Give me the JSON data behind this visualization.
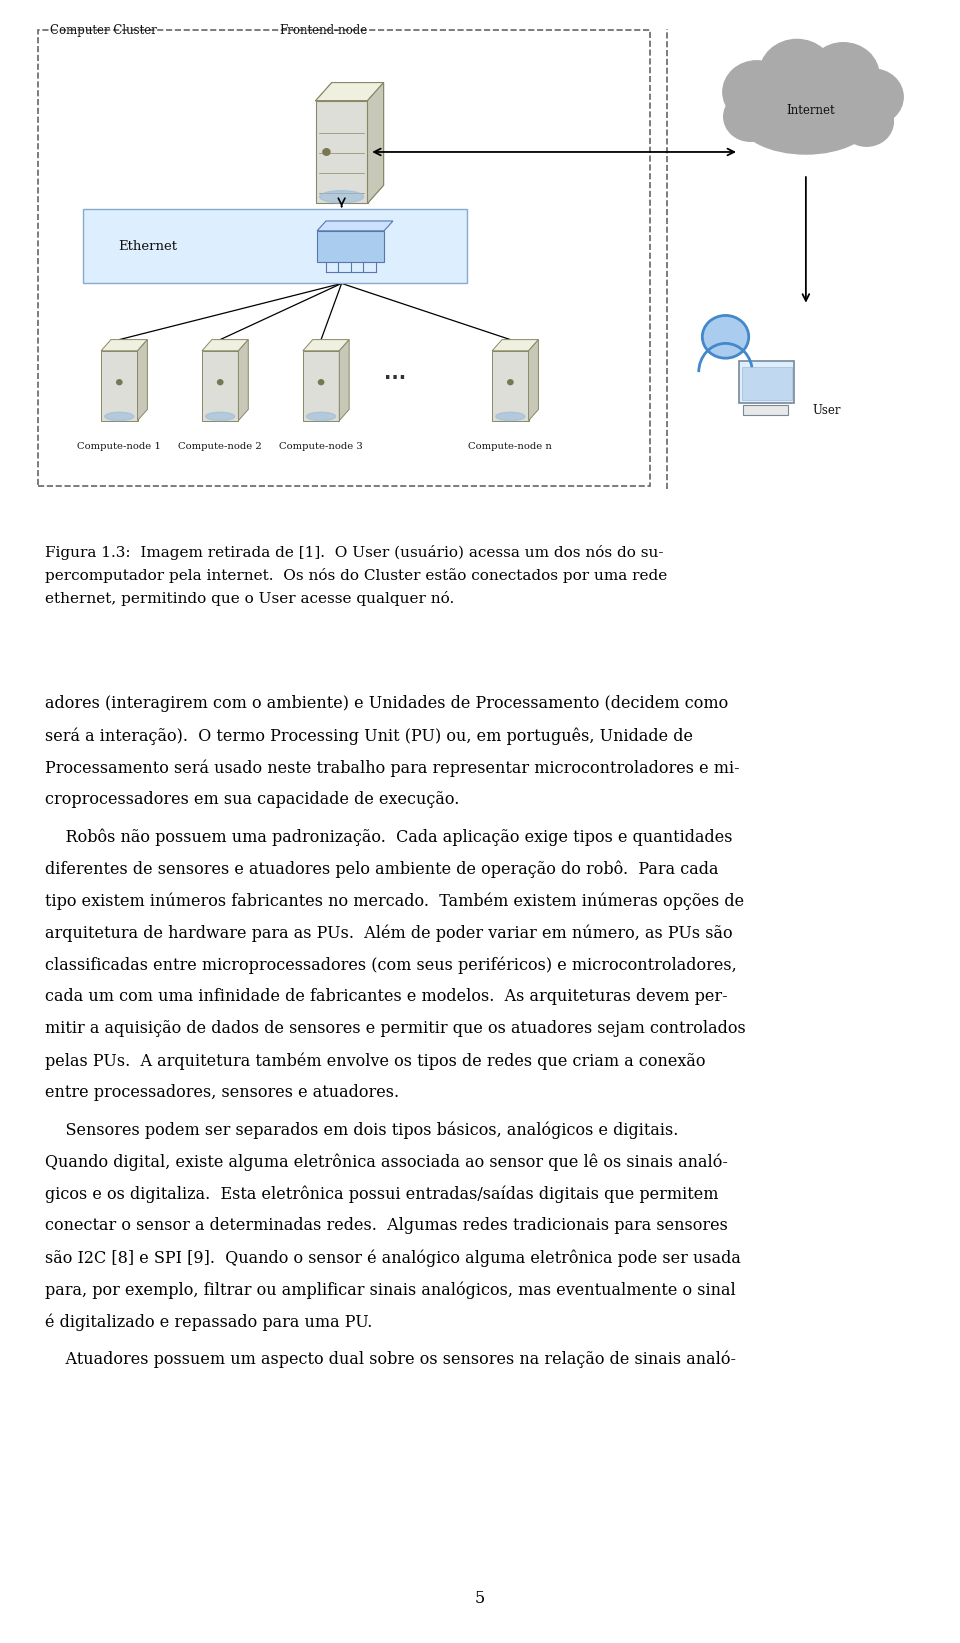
{
  "page_width": 9.6,
  "page_height": 16.43,
  "bg_color": "#ffffff",
  "text_color": "#000000",
  "fig_caption_line1": "Figura 1.3:  Imagem retirada de [1].  O User (usuário) acessa um dos nós do su-",
  "fig_caption_line2": "percomputador pela internet.  Os nós do Cluster estão conectados por uma rede",
  "fig_caption_line3": "ethernet, permitindo que o User acesse qualquer nó.",
  "p1_line1": "adores (interagirem com o ambiente) e Unidades de Processamento (decidem como",
  "p1_line2": "será a interação).  O termo Processing Unit (PU) ou, em português, Unidade de",
  "p1_line3": "Processamento será usado neste trabalho para representar microcontroladores e mi-",
  "p1_line4": "croprocessadores em sua capacidade de execução.",
  "p2_line1": "    Robôs não possuem uma padronização.  Cada aplicação exige tipos e quantidades",
  "p2_line2": "diferentes de sensores e atuadores pelo ambiente de operação do robô.  Para cada",
  "p2_line3": "tipo existem inúmeros fabricantes no mercado.  Também existem inúmeras opções de",
  "p2_line4": "arquitetura de hardware para as PUs.  Além de poder variar em número, as PUs são",
  "p2_line5": "classificadas entre microprocessadores (com seus periféricos) e microcontroladores,",
  "p2_line6": "cada um com uma infinidade de fabricantes e modelos.  As arquiteturas devem per-",
  "p2_line7": "mitir a aquisição de dados de sensores e permitir que os atuadores sejam controlados",
  "p2_line8": "pelas PUs.  A arquitetura também envolve os tipos de redes que criam a conexão",
  "p2_line9": "entre processadores, sensores e atuadores.",
  "p3_line1": "    Sensores podem ser separados em dois tipos básicos, analógicos e digitais.",
  "p3_line2": "Quando digital, existe alguma eletrônica associada ao sensor que lê os sinais analó-",
  "p3_line3": "gicos e os digitaliza.  Esta eletrônica possui entradas/saídas digitais que permitem",
  "p3_line4": "conectar o sensor a determinadas redes.  Algumas redes tradicionais para sensores",
  "p3_line5": "são I2C [8] e SPI [9].  Quando o sensor é analógico alguma eletrônica pode ser usada",
  "p3_line6": "para, por exemplo, filtrar ou amplificar sinais analógicos, mas eventualmente o sinal",
  "p3_line7": "é digitalizado e repassado para uma PU.",
  "p4_line1": "    Atuadores possuem um aspecto dual sobre os sensores na relação de sinais analó-",
  "page_number": "5"
}
